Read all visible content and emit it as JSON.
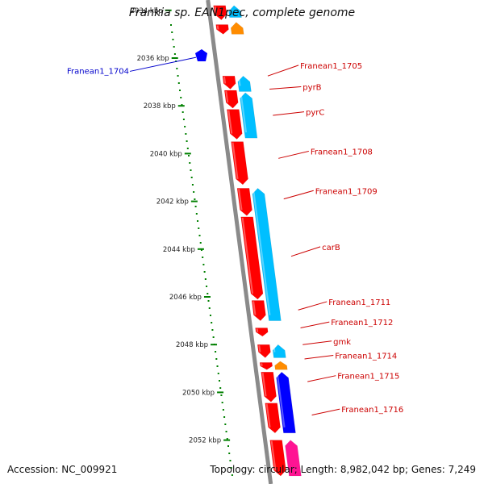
{
  "title": "Frankia sp. EAN1pec, complete genome",
  "footer": {
    "accession": "Accession: NC_009921",
    "summary": "Topology: circular; Length: 8,982,042 bp; Genes: 7,249"
  },
  "colors": {
    "forward_gene": "#ff0000",
    "reverse_gene": "#00bfff",
    "highlight_gene": "#0000ff",
    "rna_gene": "#ff8c00",
    "pink_gene": "#ff1493",
    "label_red": "#cc0000",
    "label_blue": "#0000cc",
    "ticks": "#008000"
  },
  "ruler": {
    "unit": "kbp",
    "ticks": [
      {
        "value": 2034,
        "label": "2034 kbp"
      },
      {
        "value": 2036,
        "label": "2036 kbp"
      },
      {
        "value": 2038,
        "label": "2038 kbp"
      },
      {
        "value": 2040,
        "label": "2040 kbp"
      },
      {
        "value": 2042,
        "label": "2042 kbp"
      },
      {
        "value": 2044,
        "label": "2044 kbp"
      },
      {
        "value": 2046,
        "label": "2046 kbp"
      },
      {
        "value": 2048,
        "label": "2048 kbp"
      },
      {
        "value": 2050,
        "label": "2050 kbp"
      },
      {
        "value": 2052,
        "label": "2052 kbp"
      }
    ]
  },
  "genes": [
    {
      "strand": "forward",
      "start": 2033.8,
      "end": 2034.4,
      "type": "cds"
    },
    {
      "strand": "reverse",
      "start": 2033.8,
      "end": 2034.3,
      "type": "cds"
    },
    {
      "strand": "forward",
      "start": 2034.6,
      "end": 2035.0,
      "type": "cds"
    },
    {
      "strand": "reverse",
      "start": 2034.5,
      "end": 2035.0,
      "type": "rna"
    },
    {
      "strand": "forward",
      "start": 2036.75,
      "end": 2037.3,
      "type": "cds"
    },
    {
      "strand": "forward",
      "start": 2037.35,
      "end": 2038.1,
      "type": "cds"
    },
    {
      "strand": "forward",
      "start": 2038.15,
      "end": 2039.4,
      "type": "cds"
    },
    {
      "strand": "forward",
      "start": 2039.5,
      "end": 2041.3,
      "type": "cds"
    },
    {
      "strand": "forward",
      "start": 2041.45,
      "end": 2042.6,
      "type": "cds"
    },
    {
      "strand": "forward",
      "start": 2042.65,
      "end": 2046.1,
      "type": "cds"
    },
    {
      "strand": "forward",
      "start": 2046.15,
      "end": 2047.0,
      "type": "cds"
    },
    {
      "strand": "forward",
      "start": 2047.3,
      "end": 2047.65,
      "type": "cds"
    },
    {
      "strand": "forward",
      "start": 2048.0,
      "end": 2048.55,
      "type": "cds"
    },
    {
      "strand": "forward",
      "start": 2048.75,
      "end": 2049.05,
      "type": "cds"
    },
    {
      "strand": "forward",
      "start": 2049.15,
      "end": 2050.4,
      "type": "cds"
    },
    {
      "strand": "forward",
      "start": 2050.45,
      "end": 2051.7,
      "type": "cds"
    },
    {
      "strand": "forward",
      "start": 2052.0,
      "end": 2053.5,
      "type": "cds"
    },
    {
      "strand": "reverse",
      "start": 2036.75,
      "end": 2037.4,
      "type": "cds"
    },
    {
      "strand": "reverse",
      "start": 2037.45,
      "end": 2039.35,
      "type": "cds"
    },
    {
      "strand": "reverse",
      "start": 2041.45,
      "end": 2047.0,
      "type": "cds"
    },
    {
      "strand": "reverse",
      "start": 2048.0,
      "end": 2048.55,
      "type": "cds"
    },
    {
      "strand": "reverse",
      "start": 2048.7,
      "end": 2049.05,
      "type": "rna"
    },
    {
      "strand": "reverse",
      "start": 2049.15,
      "end": 2051.7,
      "type": "highlight"
    },
    {
      "strand": "reverse",
      "start": 2052.0,
      "end": 2053.5,
      "type": "pink"
    }
  ],
  "labels": [
    {
      "text": "Franean1_1705",
      "pos": 2036.75,
      "side": "right",
      "ly": 2036.3
    },
    {
      "text": "pyrB",
      "pos": 2037.3,
      "side": "right",
      "ly": 2037.2
    },
    {
      "text": "pyrC",
      "pos": 2038.4,
      "side": "right",
      "ly": 2038.25
    },
    {
      "text": "Franean1_1708",
      "pos": 2040.2,
      "side": "right",
      "ly": 2039.9
    },
    {
      "text": "Franean1_1709",
      "pos": 2041.9,
      "side": "right",
      "ly": 2041.55
    },
    {
      "text": "carB",
      "pos": 2044.3,
      "side": "right",
      "ly": 2043.9
    },
    {
      "text": "Franean1_1711",
      "pos": 2046.55,
      "side": "right",
      "ly": 2046.2
    },
    {
      "text": "Franean1_1712",
      "pos": 2047.3,
      "side": "right",
      "ly": 2047.05
    },
    {
      "text": "gmk",
      "pos": 2048.0,
      "side": "right",
      "ly": 2047.85
    },
    {
      "text": "Franean1_1714",
      "pos": 2048.6,
      "side": "right",
      "ly": 2048.45
    },
    {
      "text": "Franean1_1715",
      "pos": 2049.55,
      "side": "right",
      "ly": 2049.3
    },
    {
      "text": "Franean1_1716",
      "pos": 2050.95,
      "side": "right",
      "ly": 2050.7
    },
    {
      "text": "Franean1_1704",
      "pos": 2035.8,
      "side": "left",
      "ly": 2036.15
    }
  ]
}
